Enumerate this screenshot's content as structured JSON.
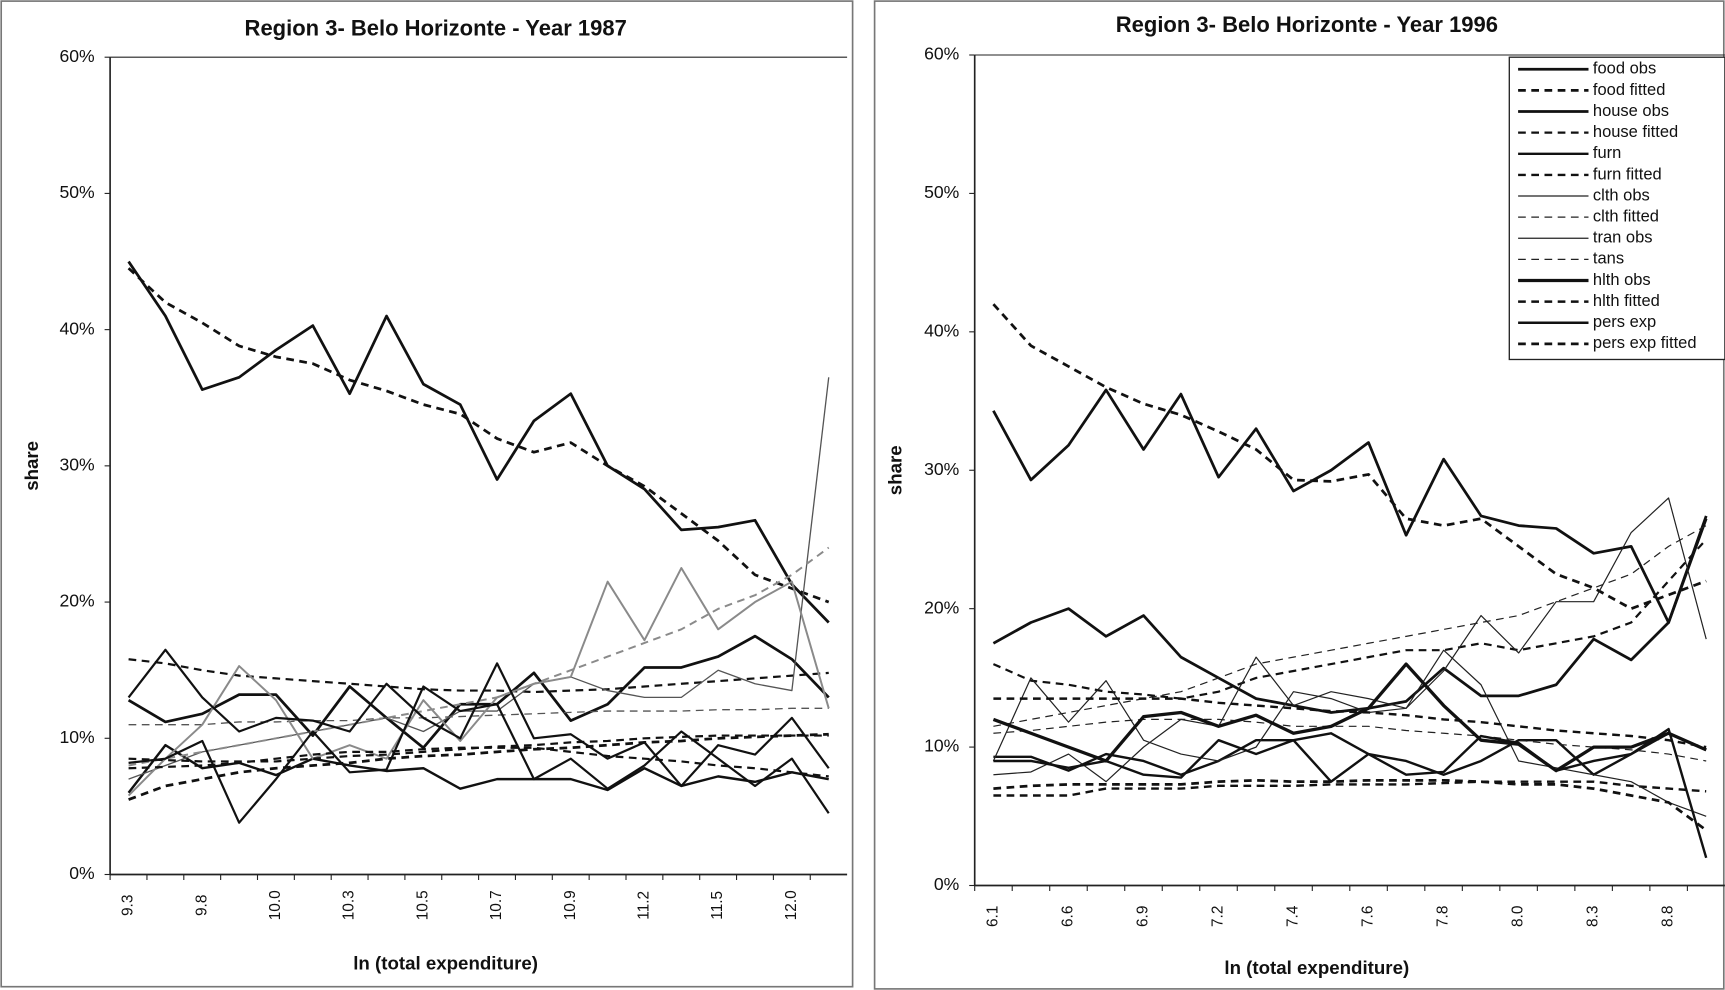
{
  "chart_data": [
    {
      "type": "line",
      "title": "Region 3- Belo Horizonte  - Year 1987",
      "x_label": "ln (total expenditure)",
      "y_label": "share",
      "categories": [
        "9.3",
        null,
        "9.8",
        null,
        "10.0",
        null,
        "10.3",
        null,
        "10.5",
        null,
        "10.7",
        null,
        "10.9",
        null,
        "11.2",
        null,
        "11.5",
        null,
        "12.0",
        null
      ],
      "ylim": [
        0,
        60
      ],
      "yticks": [
        {
          "value": 0,
          "label": "0%"
        },
        {
          "value": 10,
          "label": "10%"
        },
        {
          "value": 20,
          "label": "20%"
        },
        {
          "value": 30,
          "label": "30%"
        },
        {
          "value": 40,
          "label": "40%"
        },
        {
          "value": 50,
          "label": "50%"
        },
        {
          "value": 60,
          "label": "60%"
        }
      ],
      "series": [
        {
          "color": "#111111",
          "dash": false,
          "width": 2.5,
          "values": [
            45,
            41,
            35.6,
            36.5,
            38.5,
            40.3,
            35.3,
            41,
            36,
            34.5,
            29,
            33.3,
            35.3,
            30,
            28.3,
            25.3,
            25.5,
            26,
            21.3,
            18.5
          ]
        },
        {
          "color": "#111111",
          "dash": true,
          "width": 2.5,
          "values": [
            44.5,
            42,
            40.5,
            38.8,
            38,
            37.5,
            36.3,
            35.5,
            34.5,
            33.8,
            32,
            31,
            31.7,
            30,
            28.5,
            26.5,
            24.5,
            22,
            21,
            20
          ]
        },
        {
          "color": "#111111",
          "dash": false,
          "width": 2.5,
          "values": [
            12.8,
            11.2,
            11.8,
            13.2,
            13.2,
            10.2,
            13.8,
            11.5,
            9.3,
            12.5,
            12.5,
            14.8,
            11.3,
            12.5,
            15.2,
            15.2,
            16,
            17.5,
            15.8,
            13
          ]
        },
        {
          "color": "#111111",
          "dash": true,
          "width": 2,
          "values": [
            15.8,
            15.5,
            15,
            14.6,
            14.4,
            14.2,
            14,
            13.8,
            13.6,
            13.5,
            13.5,
            13.4,
            13.5,
            13.6,
            13.8,
            14,
            14.2,
            14.4,
            14.6,
            14.8
          ]
        },
        {
          "color": "#111111",
          "dash": false,
          "width": 2.2,
          "values": [
            6,
            9.5,
            7.8,
            8.2,
            7.3,
            8.5,
            8,
            7.6,
            7.8,
            6.3,
            7,
            7,
            7,
            6.2,
            7.8,
            6.5,
            7.2,
            6.8,
            7.5,
            7
          ]
        },
        {
          "color": "#111111",
          "dash": true,
          "width": 2.5,
          "values": [
            5.5,
            6.5,
            7,
            7.5,
            7.8,
            8,
            8.2,
            8.5,
            8.7,
            8.8,
            9,
            9.2,
            9.3,
            9.5,
            9.7,
            9.8,
            10,
            10.1,
            10.2,
            10.3
          ]
        },
        {
          "color": "#555555",
          "dash": false,
          "width": 1.2,
          "values": [
            7,
            8,
            9,
            9.5,
            10,
            10.5,
            11,
            11.5,
            10.5,
            12,
            12,
            14,
            14.5,
            13.5,
            13,
            13,
            15,
            14,
            13.5,
            36.5
          ]
        },
        {
          "color": "#555555",
          "dash": true,
          "width": 1.2,
          "values": [
            11,
            11,
            11,
            11.2,
            11.2,
            11.3,
            11.3,
            11.5,
            11.5,
            11.6,
            11.7,
            11.8,
            11.9,
            12,
            12,
            12,
            12.1,
            12.1,
            12.2,
            12.2
          ]
        },
        {
          "color": "#8a8a8a",
          "dash": false,
          "width": 1.8,
          "values": [
            5.8,
            8.5,
            11,
            15.3,
            12.8,
            8.5,
            9.5,
            8.5,
            12.8,
            9.8,
            13,
            14,
            14.5,
            21.5,
            17.2,
            22.5,
            18,
            20,
            21.5,
            12.2
          ]
        },
        {
          "color": "#8a8a8a",
          "dash": true,
          "width": 1.8,
          "values": [
            8,
            8.5,
            9,
            9.5,
            10,
            10.5,
            11,
            11.5,
            12,
            12.5,
            13,
            14,
            15,
            16,
            17,
            18,
            19.5,
            20.5,
            22,
            24
          ]
        },
        {
          "color": "#111111",
          "dash": false,
          "width": 2,
          "values": [
            13,
            16.5,
            13,
            10.5,
            11.5,
            11.3,
            10.5,
            14,
            11.5,
            10,
            15.5,
            10,
            10.3,
            8.5,
            9.7,
            6.5,
            9.5,
            8.8,
            11.5,
            7.8
          ]
        },
        {
          "color": "#111111",
          "dash": true,
          "width": 2,
          "values": [
            8.5,
            8.4,
            8.3,
            8.3,
            8.3,
            8.5,
            8.7,
            8.8,
            9,
            9.2,
            9.4,
            9.5,
            9.7,
            9.8,
            10,
            10.1,
            10.2,
            10.2,
            10.2,
            10.2
          ]
        },
        {
          "color": "#111111",
          "dash": false,
          "width": 2,
          "values": [
            8.2,
            8.5,
            9.8,
            3.8,
            7,
            10.5,
            7.5,
            7.7,
            13.8,
            12,
            12.5,
            7,
            8.5,
            6.3,
            8,
            10.5,
            8.5,
            6.5,
            8.5,
            4.5
          ]
        },
        {
          "color": "#111111",
          "dash": true,
          "width": 2,
          "values": [
            7.8,
            7.9,
            8,
            8.2,
            8.5,
            8.8,
            9,
            9,
            9.2,
            9.3,
            9.3,
            9.3,
            9,
            8.7,
            8.5,
            8.3,
            8,
            7.8,
            7.5,
            7.2
          ]
        }
      ]
    },
    {
      "type": "line",
      "title": "Region 3- Belo Horizonte  - Year 1996",
      "x_label": "ln (total expenditure)",
      "y_label": "share",
      "categories": [
        "6.1",
        null,
        "6.6",
        null,
        "6.9",
        null,
        "7.2",
        null,
        "7.4",
        null,
        "7.6",
        null,
        "7.8",
        null,
        "8.0",
        null,
        "8.3",
        null,
        "8.8",
        null
      ],
      "ylim": [
        0,
        60
      ],
      "yticks": [
        {
          "value": 0,
          "label": "0%"
        },
        {
          "value": 10,
          "label": "10%"
        },
        {
          "value": 20,
          "label": "20%"
        },
        {
          "value": 30,
          "label": "30%"
        },
        {
          "value": 40,
          "label": "40%"
        },
        {
          "value": 50,
          "label": "50%"
        },
        {
          "value": 60,
          "label": "60%"
        }
      ],
      "legend": "upper right",
      "series": [
        {
          "name": "food obs",
          "color": "#111111",
          "dash": false,
          "width": 2.5,
          "values": [
            34.3,
            29.3,
            31.8,
            35.8,
            31.5,
            35.5,
            29.5,
            33,
            28.5,
            30,
            32,
            25.3,
            30.8,
            26.7,
            26,
            25.8,
            24,
            24.5,
            19,
            26.7
          ]
        },
        {
          "name": "food fitted",
          "color": "#111111",
          "dash": true,
          "width": 2.5,
          "values": [
            42,
            39,
            37.5,
            36,
            34.8,
            34,
            32.8,
            31.5,
            29.3,
            29.2,
            29.7,
            26.5,
            26,
            26.5,
            24.5,
            22.5,
            21.5,
            20,
            21,
            22
          ]
        },
        {
          "name": "house obs",
          "color": "#111111",
          "dash": false,
          "width": 2.5,
          "values": [
            17.5,
            19,
            20,
            18,
            19.5,
            16.5,
            15,
            13.5,
            13,
            12.5,
            12.8,
            13.3,
            15.7,
            13.7,
            13.7,
            14.5,
            17.8,
            16.3,
            19,
            26.5
          ]
        },
        {
          "name": "house fitted",
          "color": "#111111",
          "dash": true,
          "width": 2,
          "values": [
            16,
            14.8,
            14.5,
            14,
            13.8,
            13.5,
            14,
            15,
            15.5,
            16,
            16.5,
            17,
            17,
            17.5,
            17,
            17.5,
            18,
            19,
            22,
            25
          ]
        },
        {
          "name": "furn",
          "color": "#111111",
          "dash": false,
          "width": 2.2,
          "values": [
            9.3,
            9.3,
            8.3,
            9.5,
            9,
            8,
            9,
            10.5,
            10.5,
            11,
            9.5,
            9,
            8,
            9,
            10.5,
            10.5,
            8,
            9.5,
            11,
            9.8
          ]
        },
        {
          "name": "furn fitted",
          "color": "#111111",
          "dash": true,
          "width": 2.2,
          "values": [
            6.5,
            6.5,
            6.5,
            7,
            7,
            7,
            7.2,
            7.2,
            7.2,
            7.3,
            7.3,
            7.3,
            7.4,
            7.5,
            7.5,
            7.5,
            7.5,
            7.2,
            7,
            6.8
          ]
        },
        {
          "name": "clth obs",
          "color": "#222222",
          "dash": false,
          "width": 1.1,
          "values": [
            9,
            15,
            11.8,
            14.8,
            10.5,
            9.5,
            9,
            10,
            14,
            13.5,
            12.5,
            12.8,
            17,
            14.5,
            9,
            8.5,
            8,
            7.5,
            6,
            5
          ]
        },
        {
          "name": "clth fitted",
          "color": "#222222",
          "dash": true,
          "width": 1.1,
          "values": [
            11,
            11.2,
            11.5,
            11.8,
            12,
            12,
            12,
            11.8,
            11.5,
            11.5,
            11.5,
            11.2,
            11,
            10.8,
            10.5,
            10.2,
            10,
            9.8,
            9.5,
            9
          ]
        },
        {
          "name": "tran obs",
          "color": "#222222",
          "dash": false,
          "width": 1.1,
          "values": [
            8,
            8.2,
            9.5,
            7.5,
            10,
            12,
            11.5,
            16.5,
            13,
            14,
            13.5,
            12.8,
            15.5,
            19.5,
            16.8,
            20.5,
            20.5,
            25.5,
            28,
            17.8
          ]
        },
        {
          "name": "tans",
          "color": "#222222",
          "dash": true,
          "width": 1.1,
          "values": [
            11.5,
            12,
            12.5,
            13,
            13.5,
            14,
            15,
            16,
            16.5,
            17,
            17.5,
            18,
            18.5,
            19,
            19.5,
            20.5,
            21.5,
            22.5,
            24.5,
            26
          ]
        },
        {
          "name": "hlth obs",
          "color": "#111111",
          "dash": false,
          "width": 3,
          "values": [
            12,
            11,
            10,
            9,
            12.2,
            12.5,
            11.5,
            12.3,
            11,
            11.5,
            12.8,
            16,
            13,
            10.5,
            10.2,
            8.3,
            10,
            10,
            11,
            9.8
          ]
        },
        {
          "name": "hlth fitted",
          "color": "#111111",
          "dash": true,
          "width": 2.2,
          "values": [
            13.5,
            13.5,
            13.5,
            13.5,
            13.5,
            13.5,
            13.2,
            13,
            12.8,
            12.6,
            12.5,
            12.3,
            12,
            11.8,
            11.5,
            11.2,
            11,
            10.8,
            10.5,
            10
          ]
        },
        {
          "name": "pers exp",
          "color": "#111111",
          "dash": false,
          "width": 2.2,
          "values": [
            9,
            9,
            8.5,
            9,
            8,
            7.8,
            10.5,
            9.5,
            10.5,
            7.5,
            9.5,
            8,
            8.2,
            10.8,
            10.3,
            8.3,
            9,
            9.5,
            11.3,
            2
          ]
        },
        {
          "name": "pers exp fitted",
          "color": "#111111",
          "dash": true,
          "width": 2.5,
          "values": [
            7,
            7.2,
            7.3,
            7.3,
            7.3,
            7.3,
            7.5,
            7.6,
            7.5,
            7.5,
            7.6,
            7.6,
            7.6,
            7.5,
            7.3,
            7.3,
            7,
            6.5,
            6,
            4
          ]
        }
      ]
    }
  ]
}
